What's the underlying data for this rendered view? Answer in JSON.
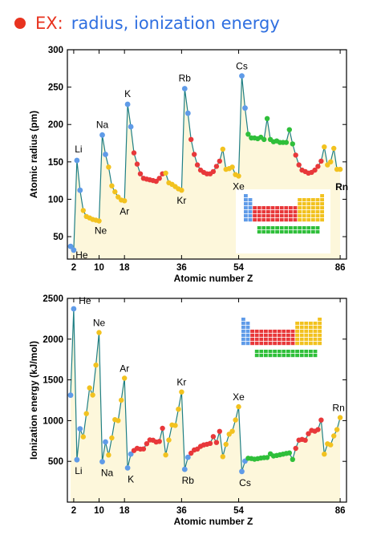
{
  "header": {
    "prefix": "EX:",
    "title": "radius, ionization energy"
  },
  "colors": {
    "s_block": "#5f9be8",
    "p_block": "#f2c21f",
    "d_block": "#e8383a",
    "f_block": "#2fbf3a",
    "line": "#1f7f84",
    "fill": "#fdf7db",
    "bullet": "#e8331f",
    "title": "#2f6fe0"
  },
  "chart_data": [
    {
      "type": "line",
      "xlabel": "Atomic number Z",
      "ylabel": "Atomic radius (pm)",
      "xlim": [
        0,
        88
      ],
      "ylim": [
        20,
        300
      ],
      "xticks": [
        2,
        10,
        18,
        36,
        54,
        86
      ],
      "yticks": [
        50,
        100,
        150,
        200,
        250,
        300
      ],
      "grid": false,
      "series": [
        {
          "values": [
            [
              1,
              37
            ],
            [
              2,
              32
            ],
            [
              3,
              152
            ],
            [
              4,
              112
            ],
            [
              5,
              85
            ],
            [
              6,
              77
            ],
            [
              7,
              75
            ],
            [
              8,
              73
            ],
            [
              9,
              72
            ],
            [
              10,
              71
            ],
            [
              11,
              186
            ],
            [
              12,
              160
            ],
            [
              13,
              143
            ],
            [
              14,
              118
            ],
            [
              15,
              110
            ],
            [
              16,
              103
            ],
            [
              17,
              99
            ],
            [
              18,
              98
            ],
            [
              19,
              227
            ],
            [
              20,
              197
            ],
            [
              21,
              162
            ],
            [
              22,
              147
            ],
            [
              23,
              134
            ],
            [
              24,
              128
            ],
            [
              25,
              127
            ],
            [
              26,
              126
            ],
            [
              27,
              125
            ],
            [
              28,
              124
            ],
            [
              29,
              128
            ],
            [
              30,
              134
            ],
            [
              31,
              135
            ],
            [
              32,
              122
            ],
            [
              33,
              120
            ],
            [
              34,
              117
            ],
            [
              35,
              114
            ],
            [
              36,
              112
            ],
            [
              37,
              248
            ],
            [
              38,
              215
            ],
            [
              39,
              180
            ],
            [
              40,
              160
            ],
            [
              41,
              146
            ],
            [
              42,
              139
            ],
            [
              43,
              136
            ],
            [
              44,
              134
            ],
            [
              45,
              134
            ],
            [
              46,
              137
            ],
            [
              47,
              144
            ],
            [
              48,
              151
            ],
            [
              49,
              167
            ],
            [
              50,
              140
            ],
            [
              51,
              141
            ],
            [
              52,
              143
            ],
            [
              53,
              133
            ],
            [
              54,
              131
            ],
            [
              55,
              265
            ],
            [
              56,
              222
            ],
            [
              57,
              187
            ],
            [
              58,
              182
            ],
            [
              59,
              182
            ],
            [
              60,
              181
            ],
            [
              61,
              183
            ],
            [
              62,
              180
            ],
            [
              63,
              208
            ],
            [
              64,
              180
            ],
            [
              65,
              177
            ],
            [
              66,
              178
            ],
            [
              67,
              176
            ],
            [
              68,
              176
            ],
            [
              69,
              176
            ],
            [
              70,
              193
            ],
            [
              71,
              174
            ],
            [
              72,
              159
            ],
            [
              73,
              146
            ],
            [
              74,
              139
            ],
            [
              75,
              137
            ],
            [
              76,
              135
            ],
            [
              77,
              136
            ],
            [
              78,
              139
            ],
            [
              79,
              144
            ],
            [
              80,
              151
            ],
            [
              81,
              170
            ],
            [
              82,
              146
            ],
            [
              83,
              150
            ],
            [
              84,
              168
            ],
            [
              85,
              140
            ],
            [
              86,
              140
            ]
          ]
        }
      ],
      "annotations": [
        {
          "text": "He",
          "x": 2
        },
        {
          "text": "Li",
          "x": 3
        },
        {
          "text": "Ne",
          "x": 10
        },
        {
          "text": "Na",
          "x": 11
        },
        {
          "text": "K",
          "x": 19
        },
        {
          "text": "Ar",
          "x": 18
        },
        {
          "text": "Rb",
          "x": 37
        },
        {
          "text": "Kr",
          "x": 36
        },
        {
          "text": "Cs",
          "x": 55
        },
        {
          "text": "Xe",
          "x": 54
        },
        {
          "text": "Rn",
          "x": 86
        }
      ]
    },
    {
      "type": "line",
      "xlabel": "Atomic number Z",
      "ylabel": "Ionization energy (kJ/mol)",
      "xlim": [
        0,
        88
      ],
      "ylim": [
        0,
        2500
      ],
      "xticks": [
        2,
        10,
        18,
        36,
        54,
        86
      ],
      "yticks": [
        500,
        1000,
        1500,
        2000,
        2500
      ],
      "grid": false,
      "series": [
        {
          "values": [
            [
              1,
              1312
            ],
            [
              2,
              2372
            ],
            [
              3,
              520
            ],
            [
              4,
              900
            ],
            [
              5,
              801
            ],
            [
              6,
              1086
            ],
            [
              7,
              1402
            ],
            [
              8,
              1314
            ],
            [
              9,
              1681
            ],
            [
              10,
              2081
            ],
            [
              11,
              496
            ],
            [
              12,
              738
            ],
            [
              13,
              578
            ],
            [
              14,
              787
            ],
            [
              15,
              1012
            ],
            [
              16,
              1000
            ],
            [
              17,
              1251
            ],
            [
              18,
              1521
            ],
            [
              19,
              419
            ],
            [
              20,
              590
            ],
            [
              21,
              633
            ],
            [
              22,
              659
            ],
            [
              23,
              651
            ],
            [
              24,
              653
            ],
            [
              25,
              717
            ],
            [
              26,
              763
            ],
            [
              27,
              760
            ],
            [
              28,
              737
            ],
            [
              29,
              745
            ],
            [
              30,
              906
            ],
            [
              31,
              579
            ],
            [
              32,
              762
            ],
            [
              33,
              947
            ],
            [
              34,
              941
            ],
            [
              35,
              1140
            ],
            [
              36,
              1351
            ],
            [
              37,
              403
            ],
            [
              38,
              550
            ],
            [
              39,
              600
            ],
            [
              40,
              640
            ],
            [
              41,
              652
            ],
            [
              42,
              684
            ],
            [
              43,
              702
            ],
            [
              44,
              710
            ],
            [
              45,
              720
            ],
            [
              46,
              804
            ],
            [
              47,
              731
            ],
            [
              48,
              868
            ],
            [
              49,
              558
            ],
            [
              50,
              709
            ],
            [
              51,
              834
            ],
            [
              52,
              869
            ],
            [
              53,
              1008
            ],
            [
              54,
              1170
            ],
            [
              55,
              376
            ],
            [
              56,
              503
            ],
            [
              57,
              538
            ],
            [
              58,
              534
            ],
            [
              59,
              527
            ],
            [
              60,
              533
            ],
            [
              61,
              540
            ],
            [
              62,
              545
            ],
            [
              63,
              547
            ],
            [
              64,
              593
            ],
            [
              65,
              566
            ],
            [
              66,
              573
            ],
            [
              67,
              581
            ],
            [
              68,
              589
            ],
            [
              69,
              597
            ],
            [
              70,
              603
            ],
            [
              71,
              524
            ],
            [
              72,
              659
            ],
            [
              73,
              761
            ],
            [
              74,
              770
            ],
            [
              75,
              760
            ],
            [
              76,
              840
            ],
            [
              77,
              880
            ],
            [
              78,
              870
            ],
            [
              79,
              890
            ],
            [
              80,
              1007
            ],
            [
              81,
              589
            ],
            [
              82,
              716
            ],
            [
              83,
              703
            ],
            [
              84,
              812
            ],
            [
              85,
              890
            ],
            [
              86,
              1037
            ]
          ]
        }
      ],
      "annotations": [
        {
          "text": "He",
          "x": 2
        },
        {
          "text": "Li",
          "x": 3
        },
        {
          "text": "Ne",
          "x": 10
        },
        {
          "text": "Na",
          "x": 11
        },
        {
          "text": "Ar",
          "x": 18
        },
        {
          "text": "K",
          "x": 19
        },
        {
          "text": "Kr",
          "x": 36
        },
        {
          "text": "Rb",
          "x": 37
        },
        {
          "text": "Xe",
          "x": 54
        },
        {
          "text": "Cs",
          "x": 55
        },
        {
          "text": "Rn",
          "x": 86
        }
      ]
    }
  ]
}
